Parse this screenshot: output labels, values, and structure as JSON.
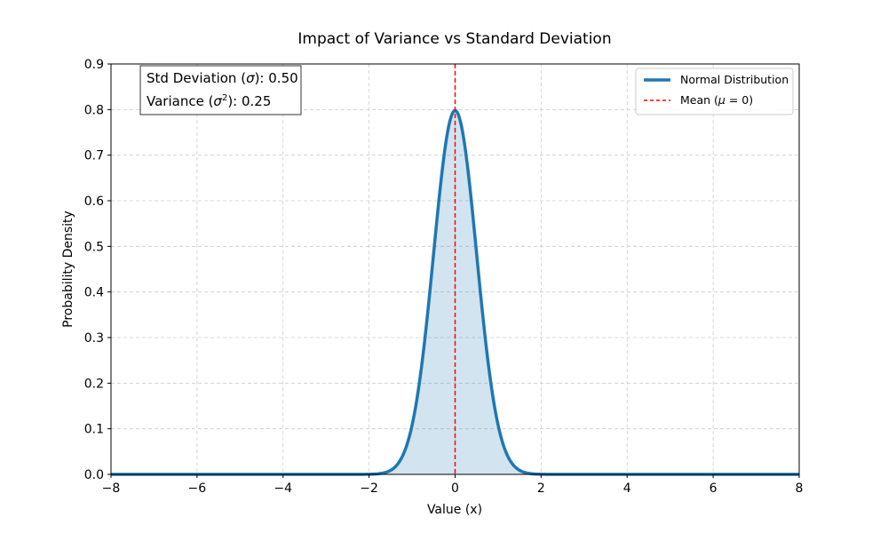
{
  "chart_data": {
    "type": "line",
    "title": "Impact of Variance vs Standard Deviation",
    "xlabel": "Value (x)",
    "ylabel": "Probability Density",
    "xlim": [
      -8,
      8
    ],
    "ylim": [
      0,
      0.9
    ],
    "x_ticks": [
      -8,
      -6,
      -4,
      -2,
      0,
      2,
      4,
      6,
      8
    ],
    "y_ticks": [
      0.0,
      0.1,
      0.2,
      0.3,
      0.4,
      0.5,
      0.6,
      0.7,
      0.8,
      0.9
    ],
    "x_tick_labels": [
      "−8",
      "−6",
      "−4",
      "−2",
      "0",
      "2",
      "4",
      "6",
      "8"
    ],
    "y_tick_labels": [
      "0.0",
      "0.1",
      "0.2",
      "0.3",
      "0.4",
      "0.5",
      "0.6",
      "0.7",
      "0.8",
      "0.9"
    ],
    "grid": true,
    "grid_style": "dashed",
    "distribution": {
      "mean": 0,
      "std": 0.5
    },
    "series": [
      {
        "name": "Normal Distribution",
        "color": "#1f77b4",
        "fill": true,
        "x": [
          -8,
          -4,
          -2,
          -1.75,
          -1.5,
          -1.25,
          -1.0,
          -0.75,
          -0.5,
          -0.25,
          0,
          0.25,
          0.5,
          0.75,
          1.0,
          1.25,
          1.5,
          1.75,
          2,
          4,
          8
        ],
        "y": [
          0.0,
          0.0,
          0.0003,
          0.0018,
          0.0089,
          0.035,
          0.108,
          0.259,
          0.484,
          0.704,
          0.798,
          0.704,
          0.484,
          0.259,
          0.108,
          0.035,
          0.0089,
          0.0018,
          0.0003,
          0.0,
          0.0
        ]
      }
    ],
    "mean_line": {
      "x": 0,
      "color": "#ff0000",
      "style": "dashed"
    },
    "legend": {
      "placement": "top-right",
      "entries": [
        {
          "label": "Normal Distribution",
          "color": "#1f77b4",
          "style": "solid"
        },
        {
          "label_prefix": "Mean (",
          "label_symbol": "μ",
          "label_suffix": " = 0)",
          "color": "#ff0000",
          "style": "dashed"
        }
      ]
    },
    "info_box": {
      "placement": "top-left",
      "std_prefix": "Std Deviation (",
      "std_symbol": "σ",
      "std_suffix": "): 0.50",
      "var_prefix": "Variance (",
      "var_symbol": "σ",
      "var_exp": "2",
      "var_suffix": "): 0.25"
    }
  }
}
